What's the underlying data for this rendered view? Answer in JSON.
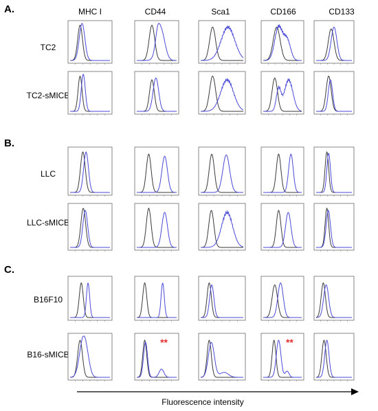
{
  "columns": [
    "MHC I",
    "CD44",
    "Sca1",
    "CD166",
    "CD133"
  ],
  "sections": [
    {
      "label": "A.",
      "rows": [
        {
          "label": "TC2",
          "markers": [
            "",
            "",
            "",
            "",
            ""
          ]
        },
        {
          "label": "TC2-sMICB",
          "markers": [
            "",
            "",
            "",
            "",
            ""
          ]
        }
      ]
    },
    {
      "label": "B.",
      "rows": [
        {
          "label": "LLC",
          "markers": [
            "",
            "",
            "",
            "",
            ""
          ]
        },
        {
          "label": "LLC-sMICB",
          "markers": [
            "",
            "",
            "",
            "",
            ""
          ]
        }
      ]
    },
    {
      "label": "C.",
      "rows": [
        {
          "label": "B16F10",
          "markers": [
            "",
            "",
            "",
            "",
            ""
          ]
        },
        {
          "label": "B16-sMICB",
          "markers": [
            "",
            "**",
            "",
            "**",
            ""
          ]
        }
      ]
    }
  ],
  "xaxis_label": "Fluorescence intensity",
  "colors": {
    "control": "#3a3a3a",
    "sample": "#4a4ad8",
    "significance": "#e23030"
  }
}
